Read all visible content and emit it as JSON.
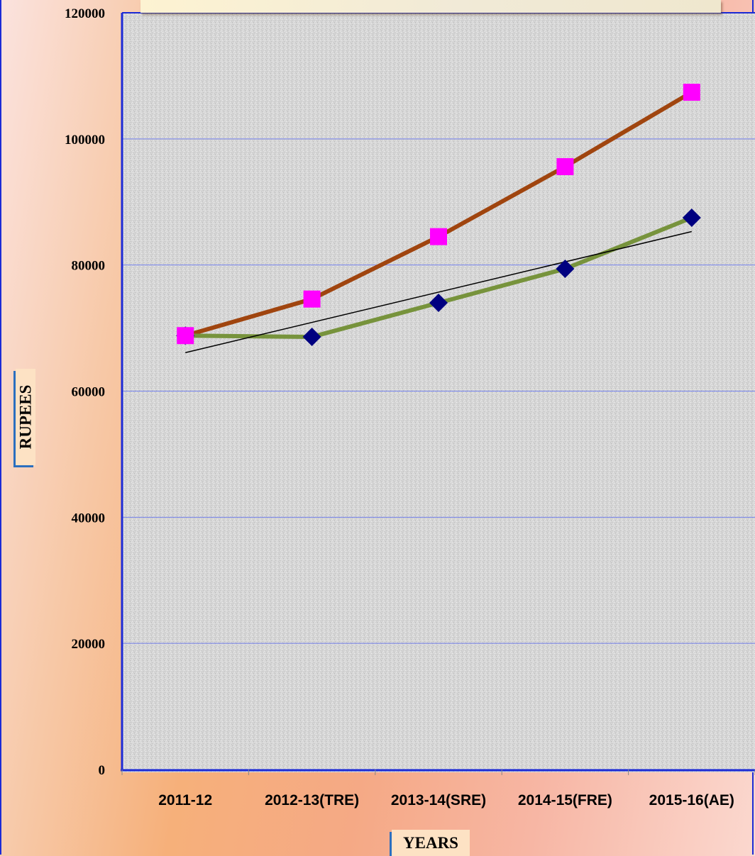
{
  "chart_data": {
    "type": "line",
    "categories": [
      "2011-12",
      "2012-13(TRE)",
      "2013-14(SRE)",
      "2014-15(FRE)",
      "2015-16(AE)"
    ],
    "series": [
      {
        "values": [
          68800,
          74600,
          84500,
          95600,
          107400
        ],
        "color": "#a0450f",
        "marker": "square",
        "marker_color": "#ff00ff"
      },
      {
        "values": [
          68800,
          68600,
          74000,
          79400,
          87500
        ],
        "color": "#77933c",
        "marker": "diamond",
        "marker_color": "#000080"
      }
    ],
    "trendline": {
      "of_series": 1,
      "values": [
        66100,
        70900,
        75700,
        80500,
        85300
      ],
      "color": "#000000"
    },
    "y_ticks": [
      0,
      20000,
      40000,
      60000,
      80000,
      100000,
      120000
    ],
    "ylim": [
      0,
      120000
    ],
    "xlabel": "YEARS",
    "ylabel": "RUPEES",
    "grid": true,
    "colors": {
      "gridline": "#6f7de8",
      "axis": "#1c2bd6",
      "plot_bg": "#d4d4d4"
    }
  }
}
